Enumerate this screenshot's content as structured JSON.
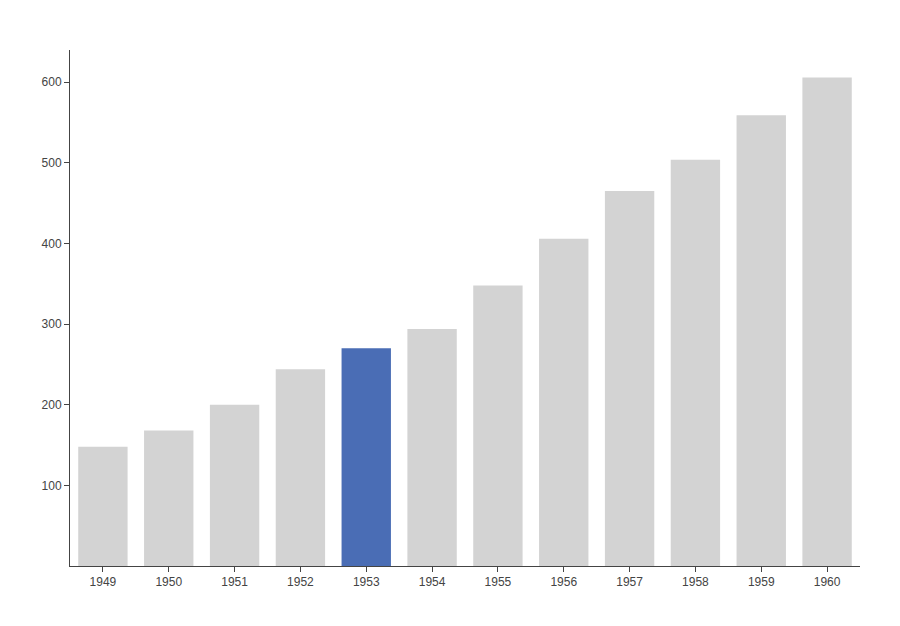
{
  "chart_data": {
    "type": "bar",
    "categories": [
      "1949",
      "1950",
      "1951",
      "1952",
      "1953",
      "1954",
      "1955",
      "1956",
      "1957",
      "1958",
      "1959",
      "1960"
    ],
    "values": [
      148,
      168,
      200,
      244,
      270,
      294,
      348,
      406,
      465,
      504,
      559,
      606
    ],
    "colors": [
      "#d3d3d3",
      "#d3d3d3",
      "#d3d3d3",
      "#d3d3d3",
      "#4a6db5",
      "#d3d3d3",
      "#d3d3d3",
      "#d3d3d3",
      "#d3d3d3",
      "#d3d3d3",
      "#d3d3d3",
      "#d3d3d3"
    ],
    "ylim": [
      0,
      640
    ],
    "yticks": [
      100,
      200,
      300,
      400,
      500,
      600
    ],
    "grid": false
  }
}
